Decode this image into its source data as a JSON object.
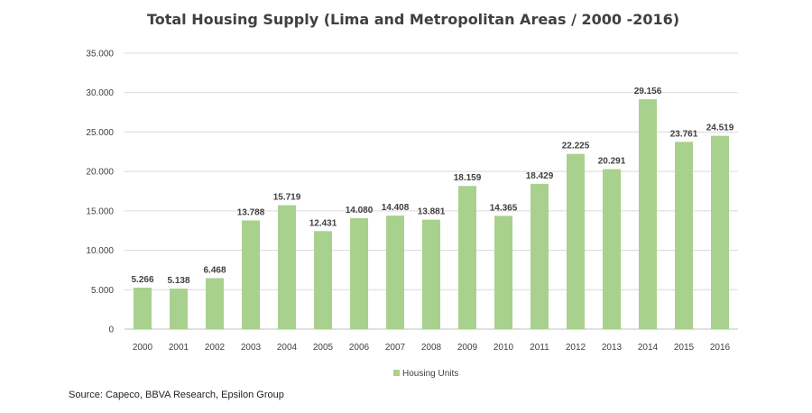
{
  "chart_data": {
    "type": "bar",
    "title": "Total Housing Supply (Lima and Metropolitan Areas / 2000 -2016)",
    "categories": [
      "2000",
      "2001",
      "2002",
      "2003",
      "2004",
      "2005",
      "2006",
      "2007",
      "2008",
      "2009",
      "2010",
      "2011",
      "2012",
      "2013",
      "2014",
      "2015",
      "2016"
    ],
    "series": [
      {
        "name": "Housing Units",
        "values": [
          5266,
          5138,
          6468,
          13788,
          15719,
          12431,
          14080,
          14408,
          13881,
          18159,
          14365,
          18429,
          22225,
          20291,
          29156,
          23761,
          24519
        ],
        "labels": [
          "5.266",
          "5.138",
          "6.468",
          "13.788",
          "15.719",
          "12.431",
          "14.080",
          "14.408",
          "13.881",
          "18.159",
          "14.365",
          "18.429",
          "22.225",
          "20.291",
          "29.156",
          "23.761",
          "24.519"
        ]
      }
    ],
    "yticks": [
      0,
      5000,
      10000,
      15000,
      20000,
      25000,
      30000,
      35000
    ],
    "ytick_labels": [
      "0",
      "5.000",
      "10.000",
      "15.000",
      "20.000",
      "25.000",
      "30.000",
      "35.000"
    ],
    "ylim": [
      0,
      35000
    ],
    "xlabel": "",
    "ylabel": "",
    "grid": true,
    "legend": "bottom",
    "bar_color": "#a9d18e"
  },
  "source": "Source: Capeco, BBVA Research, Epsilon Group"
}
